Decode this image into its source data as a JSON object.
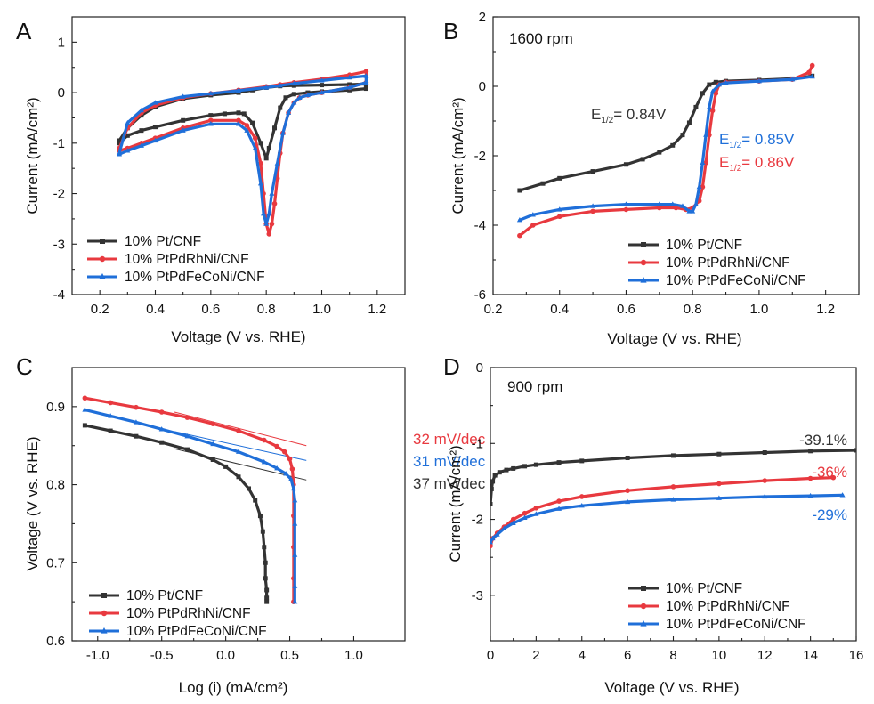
{
  "colors": {
    "pt": "#333333",
    "rh": "#e8393f",
    "fe": "#1f6fd9"
  },
  "chart_data": [
    {
      "panel": "A",
      "type": "line",
      "title": "",
      "xlabel": "Voltage (V vs. RHE)",
      "ylabel": "Current (mA/cm²)",
      "xlim": [
        0.1,
        1.3
      ],
      "ylim": [
        -4,
        1.5
      ],
      "x_ticks": [
        0.2,
        0.4,
        0.6,
        0.8,
        1.0,
        1.2
      ],
      "x_tick_labels": [
        "0.2",
        "0.4",
        "0.6",
        "0.8",
        "1.0",
        "1.2"
      ],
      "y_ticks": [
        -4,
        -3,
        -2,
        -1,
        0,
        1
      ],
      "y_tick_labels": [
        "-4",
        "-3",
        "-2",
        "-1",
        "0",
        "1"
      ],
      "legend": [
        "10% Pt/CNF",
        "10% PtPdRhNi/CNF",
        "10% PtPdFeCoNi/CNF"
      ],
      "series": [
        {
          "name": "10% Pt/CNF",
          "color": "pt",
          "marker": "square",
          "x": [
            0.27,
            0.3,
            0.35,
            0.4,
            0.5,
            0.6,
            0.7,
            0.75,
            0.8,
            0.85,
            0.9,
            1.0,
            1.1,
            1.16,
            1.16,
            1.1,
            1.0,
            0.95,
            0.9,
            0.87,
            0.85,
            0.83,
            0.81,
            0.8,
            0.78,
            0.75,
            0.72,
            0.7,
            0.65,
            0.6,
            0.5,
            0.4,
            0.35,
            0.3,
            0.27
          ],
          "y": [
            -0.95,
            -0.7,
            -0.45,
            -0.28,
            -0.12,
            -0.05,
            0.0,
            0.05,
            0.1,
            0.13,
            0.14,
            0.15,
            0.16,
            0.17,
            0.08,
            0.05,
            0.02,
            0.0,
            -0.03,
            -0.1,
            -0.3,
            -0.7,
            -1.1,
            -1.3,
            -1.0,
            -0.6,
            -0.42,
            -0.4,
            -0.42,
            -0.45,
            -0.55,
            -0.68,
            -0.75,
            -0.85,
            -1.0
          ]
        },
        {
          "name": "10% PtPdRhNi/CNF",
          "color": "rh",
          "marker": "circle",
          "x": [
            0.27,
            0.3,
            0.35,
            0.4,
            0.5,
            0.6,
            0.7,
            0.8,
            0.85,
            0.9,
            1.0,
            1.1,
            1.16,
            1.16,
            1.1,
            1.0,
            0.95,
            0.92,
            0.9,
            0.88,
            0.86,
            0.85,
            0.84,
            0.83,
            0.82,
            0.81,
            0.8,
            0.79,
            0.78,
            0.76,
            0.73,
            0.7,
            0.6,
            0.5,
            0.4,
            0.35,
            0.3,
            0.27
          ],
          "y": [
            -1.1,
            -0.7,
            -0.4,
            -0.25,
            -0.1,
            -0.02,
            0.05,
            0.12,
            0.16,
            0.2,
            0.27,
            0.35,
            0.42,
            0.2,
            0.1,
            0.0,
            -0.05,
            -0.1,
            -0.2,
            -0.4,
            -0.8,
            -1.2,
            -1.7,
            -2.2,
            -2.6,
            -2.8,
            -2.6,
            -2.0,
            -1.4,
            -0.9,
            -0.65,
            -0.55,
            -0.55,
            -0.7,
            -0.9,
            -1.0,
            -1.1,
            -1.15
          ]
        },
        {
          "name": "10% PtPdFeCoNi/CNF",
          "color": "fe",
          "marker": "triangle",
          "x": [
            0.27,
            0.3,
            0.35,
            0.4,
            0.5,
            0.6,
            0.7,
            0.8,
            0.85,
            0.9,
            1.0,
            1.1,
            1.16,
            1.16,
            1.1,
            1.0,
            0.95,
            0.92,
            0.9,
            0.88,
            0.86,
            0.84,
            0.82,
            0.81,
            0.8,
            0.79,
            0.78,
            0.76,
            0.73,
            0.7,
            0.6,
            0.5,
            0.4,
            0.35,
            0.3,
            0.27
          ],
          "y": [
            -1.2,
            -0.6,
            -0.35,
            -0.2,
            -0.08,
            -0.02,
            0.04,
            0.1,
            0.14,
            0.18,
            0.24,
            0.3,
            0.33,
            0.2,
            0.1,
            0.0,
            -0.05,
            -0.1,
            -0.2,
            -0.4,
            -0.8,
            -1.4,
            -2.0,
            -2.4,
            -2.6,
            -2.4,
            -1.8,
            -1.1,
            -0.75,
            -0.62,
            -0.62,
            -0.75,
            -0.95,
            -1.05,
            -1.15,
            -1.22
          ]
        }
      ]
    },
    {
      "panel": "B",
      "type": "line",
      "title": "1600 rpm",
      "xlabel": "Voltage (V vs. RHE)",
      "ylabel": "Current (mA/cm²)",
      "xlim": [
        0.2,
        1.3
      ],
      "ylim": [
        -6,
        2
      ],
      "x_ticks": [
        0.2,
        0.4,
        0.6,
        0.8,
        1.0,
        1.2
      ],
      "x_tick_labels": [
        "0.2",
        "0.4",
        "0.6",
        "0.8",
        "1.0",
        "1.2"
      ],
      "y_ticks": [
        -6,
        -4,
        -2,
        0,
        2
      ],
      "y_tick_labels": [
        "-6",
        "-4",
        "-2",
        "0",
        "2"
      ],
      "legend": [
        "10% Pt/CNF",
        "10% PtPdRhNi/CNF",
        "10% PtPdFeCoNi/CNF"
      ],
      "annotations": [
        {
          "text": "E",
          "sub": "1/2",
          "rest": "= 0.84V",
          "color": "pt"
        },
        {
          "text": "E",
          "sub": "1/2",
          "rest": "= 0.85V",
          "color": "fe"
        },
        {
          "text": "E",
          "sub": "1/2",
          "rest": "= 0.86V",
          "color": "rh"
        }
      ],
      "series": [
        {
          "name": "10% Pt/CNF",
          "color": "pt",
          "marker": "square",
          "x": [
            0.28,
            0.35,
            0.4,
            0.5,
            0.6,
            0.65,
            0.7,
            0.74,
            0.77,
            0.79,
            0.81,
            0.83,
            0.85,
            0.87,
            0.9,
            1.0,
            1.1,
            1.16
          ],
          "y": [
            -3.0,
            -2.8,
            -2.65,
            -2.45,
            -2.25,
            -2.1,
            -1.9,
            -1.7,
            -1.4,
            -1.05,
            -0.6,
            -0.2,
            0.05,
            0.12,
            0.15,
            0.18,
            0.22,
            0.3
          ]
        },
        {
          "name": "10% PtPdRhNi/CNF",
          "color": "rh",
          "marker": "circle",
          "x": [
            0.28,
            0.32,
            0.4,
            0.5,
            0.6,
            0.7,
            0.75,
            0.78,
            0.8,
            0.82,
            0.83,
            0.84,
            0.85,
            0.86,
            0.87,
            0.88,
            0.9,
            1.0,
            1.1,
            1.15,
            1.16
          ],
          "y": [
            -4.3,
            -4.0,
            -3.75,
            -3.6,
            -3.55,
            -3.5,
            -3.5,
            -3.55,
            -3.5,
            -3.3,
            -2.9,
            -2.2,
            -1.4,
            -0.7,
            -0.2,
            0.05,
            0.12,
            0.15,
            0.2,
            0.4,
            0.6
          ]
        },
        {
          "name": "10% PtPdFeCoNi/CNF",
          "color": "fe",
          "marker": "triangle",
          "x": [
            0.28,
            0.32,
            0.4,
            0.5,
            0.6,
            0.7,
            0.74,
            0.77,
            0.79,
            0.8,
            0.81,
            0.82,
            0.83,
            0.84,
            0.85,
            0.86,
            0.88,
            0.9,
            1.0,
            1.1,
            1.16
          ],
          "y": [
            -3.85,
            -3.7,
            -3.55,
            -3.45,
            -3.4,
            -3.4,
            -3.4,
            -3.45,
            -3.6,
            -3.6,
            -3.4,
            -2.9,
            -2.2,
            -1.4,
            -0.6,
            -0.15,
            0.05,
            0.1,
            0.15,
            0.2,
            0.28
          ]
        }
      ]
    },
    {
      "panel": "C",
      "type": "line",
      "title": "",
      "xlabel": "Log (i) (mA/cm²)",
      "ylabel": "Voltage (V vs. RHE)",
      "xlim": [
        -1.2,
        1.4
      ],
      "ylim": [
        0.6,
        0.95
      ],
      "x_ticks": [
        -1.0,
        -0.5,
        0.0,
        0.5,
        1.0
      ],
      "x_tick_labels": [
        "-1.0",
        "-0.5",
        "0.0",
        "0.5",
        "1.0"
      ],
      "y_ticks": [
        0.6,
        0.7,
        0.8,
        0.9
      ],
      "y_tick_labels": [
        "0.6",
        "0.7",
        "0.8",
        "0.9"
      ],
      "legend": [
        "10% Pt/CNF",
        "10% PtPdRhNi/CNF",
        "10% PtPdFeCoNi/CNF"
      ],
      "annotations": [
        {
          "text": "32 mV/dec",
          "color": "rh"
        },
        {
          "text": "31 mV/dec",
          "color": "fe"
        },
        {
          "text": "37 mV/dec",
          "color": "pt"
        }
      ],
      "tafel_lines": [
        {
          "color": "rh",
          "x": [
            -0.4,
            0.63
          ],
          "y": [
            0.893,
            0.85
          ]
        },
        {
          "color": "fe",
          "x": [
            -0.4,
            0.63
          ],
          "y": [
            0.868,
            0.831
          ]
        },
        {
          "color": "pt",
          "x": [
            -0.4,
            0.63
          ],
          "y": [
            0.846,
            0.806
          ]
        }
      ],
      "series": [
        {
          "name": "10% Pt/CNF",
          "color": "pt",
          "marker": "square",
          "x": [
            -1.1,
            -0.9,
            -0.7,
            -0.5,
            -0.3,
            -0.1,
            0.0,
            0.1,
            0.18,
            0.23,
            0.27,
            0.29,
            0.3,
            0.31,
            0.31,
            0.32,
            0.32,
            0.32
          ],
          "y": [
            0.876,
            0.869,
            0.862,
            0.854,
            0.845,
            0.832,
            0.823,
            0.81,
            0.795,
            0.78,
            0.76,
            0.74,
            0.72,
            0.7,
            0.68,
            0.665,
            0.655,
            0.65
          ]
        },
        {
          "name": "10% PtPdRhNi/CNF",
          "color": "rh",
          "marker": "circle",
          "x": [
            -1.1,
            -0.9,
            -0.7,
            -0.5,
            -0.3,
            -0.1,
            0.1,
            0.3,
            0.4,
            0.46,
            0.5,
            0.52,
            0.53,
            0.53,
            0.53,
            0.53,
            0.53
          ],
          "y": [
            0.911,
            0.905,
            0.899,
            0.893,
            0.886,
            0.878,
            0.869,
            0.857,
            0.849,
            0.842,
            0.833,
            0.82,
            0.8,
            0.76,
            0.72,
            0.68,
            0.65
          ]
        },
        {
          "name": "10% PtPdFeCoNi/CNF",
          "color": "fe",
          "marker": "triangle",
          "x": [
            -1.1,
            -0.9,
            -0.7,
            -0.5,
            -0.3,
            -0.1,
            0.1,
            0.3,
            0.4,
            0.47,
            0.51,
            0.53,
            0.54,
            0.54,
            0.54,
            0.54,
            0.54
          ],
          "y": [
            0.896,
            0.888,
            0.88,
            0.871,
            0.862,
            0.852,
            0.842,
            0.829,
            0.821,
            0.814,
            0.807,
            0.795,
            0.78,
            0.75,
            0.71,
            0.67,
            0.65
          ]
        }
      ]
    },
    {
      "panel": "D",
      "type": "line",
      "title": "900 rpm",
      "xlabel": "Voltage (V vs. RHE)",
      "ylabel": "Current (mA/cm²)",
      "xlim": [
        0,
        16
      ],
      "ylim": [
        -3.6,
        0
      ],
      "x_ticks": [
        0,
        2,
        4,
        6,
        8,
        10,
        12,
        14,
        16
      ],
      "x_tick_labels": [
        "0",
        "2",
        "4",
        "6",
        "8",
        "10",
        "12",
        "14",
        "16"
      ],
      "y_ticks": [
        -3,
        -2,
        -1,
        0
      ],
      "y_tick_labels": [
        "-3",
        "-2",
        "-1",
        "0"
      ],
      "legend": [
        "10% Pt/CNF",
        "10% PtPdRhNi/CNF",
        "10% PtPdFeCoNi/CNF"
      ],
      "annotations": [
        {
          "text": "-39.1%",
          "color": "pt"
        },
        {
          "text": "-36%",
          "color": "rh"
        },
        {
          "text": "-29%",
          "color": "fe"
        }
      ],
      "series": [
        {
          "name": "10% Pt/CNF",
          "color": "pt",
          "marker": "square",
          "x": [
            0.0,
            0.05,
            0.1,
            0.2,
            0.4,
            0.7,
            1.0,
            1.5,
            2.0,
            3.0,
            4.0,
            6.0,
            8.0,
            10.0,
            12.0,
            14.0,
            16.0
          ],
          "y": [
            -1.8,
            -1.6,
            -1.5,
            -1.42,
            -1.38,
            -1.35,
            -1.33,
            -1.3,
            -1.28,
            -1.25,
            -1.23,
            -1.19,
            -1.16,
            -1.14,
            -1.12,
            -1.1,
            -1.09
          ]
        },
        {
          "name": "10% PtPdRhNi/CNF",
          "color": "rh",
          "marker": "circle",
          "x": [
            0.0,
            0.1,
            0.3,
            0.6,
            1.0,
            1.5,
            2.0,
            3.0,
            4.0,
            6.0,
            8.0,
            10.0,
            12.0,
            14.0,
            15.0
          ],
          "y": [
            -2.35,
            -2.25,
            -2.18,
            -2.1,
            -2.0,
            -1.92,
            -1.85,
            -1.76,
            -1.7,
            -1.62,
            -1.57,
            -1.53,
            -1.49,
            -1.46,
            -1.45
          ]
        },
        {
          "name": "10% PtPdFeCoNi/CNF",
          "color": "fe",
          "marker": "triangle",
          "x": [
            0.0,
            0.1,
            0.3,
            0.6,
            1.0,
            1.5,
            2.0,
            3.0,
            4.0,
            6.0,
            8.0,
            10.0,
            12.0,
            14.0,
            15.4
          ],
          "y": [
            -2.3,
            -2.25,
            -2.2,
            -2.12,
            -2.05,
            -1.98,
            -1.93,
            -1.86,
            -1.82,
            -1.77,
            -1.74,
            -1.72,
            -1.7,
            -1.69,
            -1.68
          ]
        }
      ]
    }
  ],
  "panel_labels": [
    "A",
    "B",
    "C",
    "D"
  ]
}
